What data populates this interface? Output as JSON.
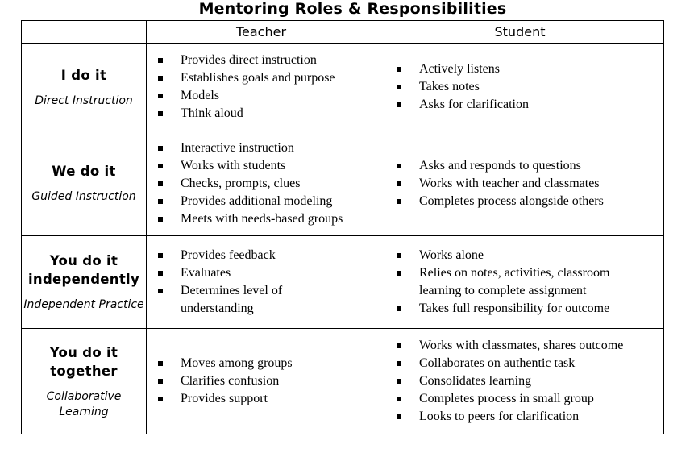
{
  "title": "Mentoring Roles & Responsibilities",
  "columns": {
    "role": "",
    "teacher": "Teacher",
    "student": "Student"
  },
  "rows": [
    {
      "role": "I do it",
      "mode": "Direct Instruction",
      "teacher": [
        "Provides direct instruction",
        "Establishes goals and purpose",
        "Models",
        "Think aloud"
      ],
      "student": [
        "Actively listens",
        "Takes notes",
        "Asks for clarification"
      ]
    },
    {
      "role": "We do it",
      "mode": "Guided Instruction",
      "teacher": [
        "Interactive instruction",
        "Works with students",
        "Checks, prompts, clues",
        "Provides additional modeling",
        "Meets with needs-based groups"
      ],
      "student": [
        "Asks and responds to questions",
        "Works with teacher and classmates",
        "Completes process alongside others"
      ]
    },
    {
      "role": "You do it independently",
      "mode": "Independent Practice",
      "teacher": [
        "Provides feedback",
        "Evaluates",
        "Determines level of understanding"
      ],
      "student": [
        "Works alone",
        "Relies on notes, activities, classroom learning to complete assignment",
        "Takes full responsibility for outcome"
      ]
    },
    {
      "role": "You do it together",
      "mode": "Collaborative Learning",
      "teacher": [
        "Moves among groups",
        "Clarifies confusion",
        "Provides support"
      ],
      "student": [
        "Works with classmates, shares outcome",
        "Collaborates on authentic task",
        "Consolidates learning",
        "Completes process in small group",
        "Looks to peers for clarification"
      ]
    }
  ]
}
